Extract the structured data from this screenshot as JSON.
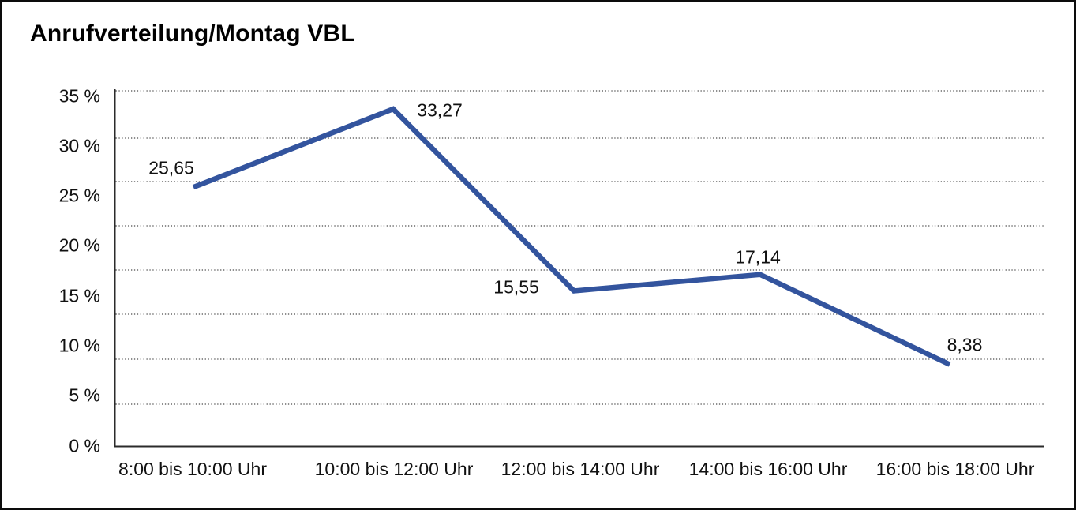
{
  "title": "Anrufverteilung/Montag VBL",
  "chart_data": {
    "type": "line",
    "title": "Anrufverteilung/Montag VBL",
    "categories": [
      "8:00 bis 10:00 Uhr",
      "10:00 bis 12:00 Uhr",
      "12:00 bis 14:00 Uhr",
      "14:00 bis 16:00 Uhr",
      "16:00 bis 18:00 Uhr"
    ],
    "values": [
      25.65,
      33.27,
      15.55,
      17.14,
      8.38
    ],
    "value_labels": [
      "25,65",
      "33,27",
      "15,55",
      "17,14",
      "8,38"
    ],
    "y_tick_labels": [
      "35 %",
      "30 %",
      "25 %",
      "20 %",
      "15 %",
      "10 %",
      "5 %",
      "0 %"
    ],
    "ylim": [
      0,
      35
    ],
    "xlabel": "",
    "ylabel": "",
    "grid": "horizontal-dotted",
    "legend": "none",
    "line_color": "#33549E"
  }
}
